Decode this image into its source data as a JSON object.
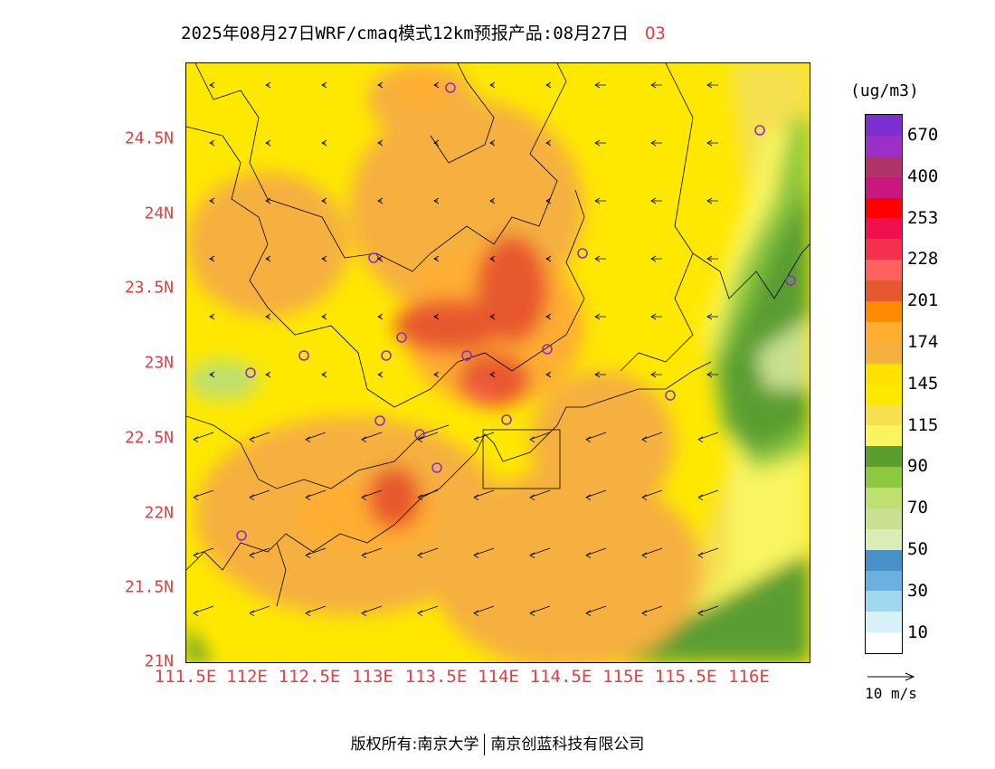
{
  "title": {
    "text": "2025年08月27日WRF/cmaq模式12km预报产品:08月27日",
    "pollutant": "O3"
  },
  "map": {
    "lat_labels": [
      "24.5N",
      "24N",
      "23.5N",
      "23N",
      "22.5N",
      "22N",
      "21.5N",
      "21N"
    ],
    "lon_labels": [
      "111.5E",
      "112E",
      "112.5E",
      "113E",
      "113.5E",
      "114E",
      "114.5E",
      "115E",
      "115.5E",
      "116E"
    ]
  },
  "legend": {
    "unit": "(ug/m3)",
    "colors": [
      "#7b2fd1",
      "#9b30c8",
      "#b0336a",
      "#c8187d",
      "#ff0000",
      "#f0104e",
      "#f4304e",
      "#ff6060",
      "#e8582e",
      "#ff8c00",
      "#ffae30",
      "#f5b040",
      "#ffe000",
      "#ffe800",
      "#f5e050",
      "#f8f560",
      "#5a9e30",
      "#8cc840",
      "#bde070",
      "#c9e090",
      "#dcecb8",
      "#4a90c8",
      "#6ab0e0",
      "#a0d8f0",
      "#d8f0f8",
      "#ffffff"
    ],
    "labels": [
      "670",
      "400",
      "253",
      "228",
      "201",
      "174",
      "145",
      "115",
      "90",
      "70",
      "50",
      "30",
      "10"
    ]
  },
  "wind_reference": {
    "label": "10 m/s"
  },
  "footer": {
    "left": "版权所有:南京大学",
    "right": "南京创蓝科技有限公司"
  }
}
